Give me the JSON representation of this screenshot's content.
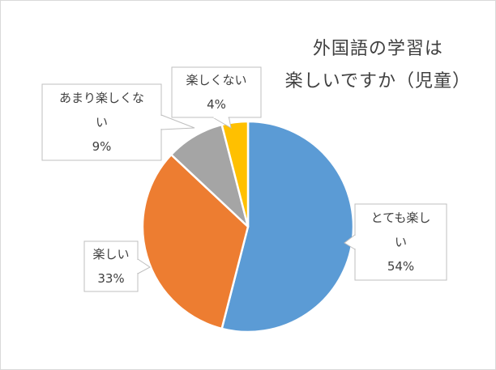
{
  "chart_data": {
    "type": "pie",
    "title_lines": [
      "外国語の学習は",
      "楽しいですか（児童）"
    ],
    "slices": [
      {
        "label_lines": [
          "とても楽し",
          "い"
        ],
        "value": 54,
        "value_label": "54%",
        "color": "#5b9bd5"
      },
      {
        "label_lines": [
          "楽しい"
        ],
        "value": 33,
        "value_label": "33%",
        "color": "#ed7d31"
      },
      {
        "label_lines": [
          "あまり楽しくな",
          "い"
        ],
        "value": 9,
        "value_label": "9%",
        "color": "#a5a5a5"
      },
      {
        "label_lines": [
          "楽しくない"
        ],
        "value": 4,
        "value_label": "4%",
        "color": "#ffc000"
      }
    ],
    "legend": "none"
  }
}
